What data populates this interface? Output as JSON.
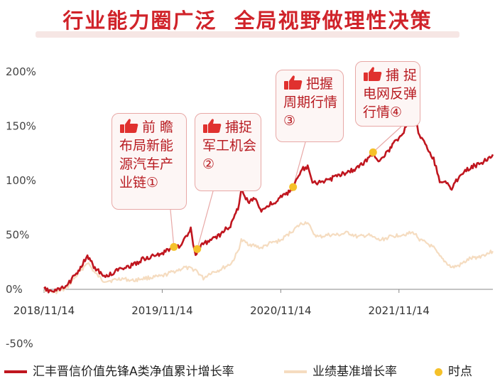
{
  "headline": "行业能力圈广泛  全局视野做理性决策",
  "colors": {
    "fund": "#c0161f",
    "benchmark": "#f5dcc0",
    "point": "#f5c12a",
    "headline": "#d0232a"
  },
  "chart_data": {
    "type": "line",
    "x_axis": {
      "ticks": [
        "2018/11/14",
        "2019/11/14",
        "2020/11/14",
        "2021/11/14"
      ],
      "range": [
        "2018/11/14",
        "2022/08/31"
      ]
    },
    "y_axis": {
      "ticks": [
        "200%",
        "150%",
        "100%",
        "50%",
        "0%",
        "-50%"
      ],
      "range": [
        -50,
        200
      ],
      "unit": "%"
    },
    "series": [
      {
        "name": "汇丰晋信价值先锋A类净值累计增长率",
        "color": "#c0161f",
        "points": [
          [
            "2018/11/14",
            0
          ],
          [
            "2018/12/15",
            -2
          ],
          [
            "2019/01/20",
            2
          ],
          [
            "2019/02/15",
            12
          ],
          [
            "2019/03/10",
            22
          ],
          [
            "2019/03/28",
            30
          ],
          [
            "2019/04/20",
            20
          ],
          [
            "2019/05/15",
            12
          ],
          [
            "2019/06/10",
            14
          ],
          [
            "2019/07/10",
            20
          ],
          [
            "2019/08/15",
            22
          ],
          [
            "2019/09/15",
            28
          ],
          [
            "2019/10/15",
            30
          ],
          [
            "2019/11/14",
            33
          ],
          [
            "2019/12/15",
            38
          ],
          [
            "2020/01/05",
            40
          ],
          [
            "2020/01/20",
            45
          ],
          [
            "2020/02/10",
            55
          ],
          [
            "2020/02/25",
            30
          ],
          [
            "2020/03/05",
            37
          ],
          [
            "2020/03/20",
            42
          ],
          [
            "2020/04/10",
            45
          ],
          [
            "2020/05/10",
            50
          ],
          [
            "2020/06/15",
            60
          ],
          [
            "2020/07/05",
            75
          ],
          [
            "2020/07/15",
            92
          ],
          [
            "2020/08/05",
            80
          ],
          [
            "2020/08/25",
            85
          ],
          [
            "2020/09/15",
            72
          ],
          [
            "2020/10/10",
            78
          ],
          [
            "2020/11/01",
            80
          ],
          [
            "2020/11/14",
            85
          ],
          [
            "2020/12/05",
            88
          ],
          [
            "2020/12/25",
            95
          ],
          [
            "2021/01/15",
            110
          ],
          [
            "2021/02/05",
            112
          ],
          [
            "2021/02/20",
            100
          ],
          [
            "2021/03/10",
            98
          ],
          [
            "2021/04/10",
            100
          ],
          [
            "2021/05/10",
            105
          ],
          [
            "2021/06/10",
            108
          ],
          [
            "2021/07/10",
            112
          ],
          [
            "2021/08/10",
            120
          ],
          [
            "2021/08/26",
            125
          ],
          [
            "2021/09/15",
            118
          ],
          [
            "2021/10/15",
            128
          ],
          [
            "2021/11/14",
            140
          ],
          [
            "2021/12/10",
            150
          ],
          [
            "2021/12/30",
            157
          ],
          [
            "2022/01/20",
            140
          ],
          [
            "2022/02/10",
            130
          ],
          [
            "2022/03/01",
            120
          ],
          [
            "2022/03/20",
            100
          ],
          [
            "2022/04/10",
            98
          ],
          [
            "2022/04/26",
            92
          ],
          [
            "2022/05/20",
            105
          ],
          [
            "2022/06/20",
            112
          ],
          [
            "2022/07/20",
            115
          ],
          [
            "2022/08/31",
            124
          ]
        ]
      },
      {
        "name": "业绩基准增长率",
        "color": "#f5dcc0",
        "points": [
          [
            "2018/11/14",
            0
          ],
          [
            "2018/12/15",
            -3
          ],
          [
            "2019/01/20",
            0
          ],
          [
            "2019/02/15",
            10
          ],
          [
            "2019/03/10",
            18
          ],
          [
            "2019/03/28",
            25
          ],
          [
            "2019/04/20",
            15
          ],
          [
            "2019/05/15",
            8
          ],
          [
            "2019/06/10",
            8
          ],
          [
            "2019/07/10",
            10
          ],
          [
            "2019/08/15",
            8
          ],
          [
            "2019/09/15",
            10
          ],
          [
            "2019/10/15",
            11
          ],
          [
            "2019/11/14",
            12
          ],
          [
            "2019/12/15",
            16
          ],
          [
            "2020/01/05",
            18
          ],
          [
            "2020/01/20",
            20
          ],
          [
            "2020/02/25",
            18
          ],
          [
            "2020/03/20",
            10
          ],
          [
            "2020/04/10",
            15
          ],
          [
            "2020/05/10",
            18
          ],
          [
            "2020/06/15",
            24
          ],
          [
            "2020/07/05",
            35
          ],
          [
            "2020/07/15",
            45
          ],
          [
            "2020/08/05",
            42
          ],
          [
            "2020/08/25",
            40
          ],
          [
            "2020/09/15",
            38
          ],
          [
            "2020/10/10",
            42
          ],
          [
            "2020/11/14",
            45
          ],
          [
            "2020/12/25",
            55
          ],
          [
            "2021/01/15",
            60
          ],
          [
            "2021/02/05",
            62
          ],
          [
            "2021/02/20",
            52
          ],
          [
            "2021/03/10",
            48
          ],
          [
            "2021/04/10",
            50
          ],
          [
            "2021/05/10",
            50
          ],
          [
            "2021/06/10",
            52
          ],
          [
            "2021/07/10",
            48
          ],
          [
            "2021/08/10",
            50
          ],
          [
            "2021/09/15",
            45
          ],
          [
            "2021/10/15",
            48
          ],
          [
            "2021/11/14",
            50
          ],
          [
            "2021/12/30",
            52
          ],
          [
            "2022/01/20",
            45
          ],
          [
            "2022/02/10",
            42
          ],
          [
            "2022/03/01",
            38
          ],
          [
            "2022/03/20",
            30
          ],
          [
            "2022/04/26",
            20
          ],
          [
            "2022/05/20",
            22
          ],
          [
            "2022/06/20",
            28
          ],
          [
            "2022/07/20",
            30
          ],
          [
            "2022/08/31",
            35
          ]
        ]
      }
    ],
    "markers": {
      "name": "时点",
      "color": "#f5c12a",
      "points": [
        [
          "2019/12/20",
          39
        ],
        [
          "2020/03/01",
          37
        ],
        [
          "2020/12/22",
          94
        ],
        [
          "2021/08/26",
          126
        ]
      ]
    },
    "grid": false,
    "legend_position": "bottom"
  },
  "annotations": [
    {
      "lines": [
        "前 瞻",
        "布局新能",
        "源汽车产",
        "业链①"
      ]
    },
    {
      "lines": [
        "捕捉",
        "军工机会",
        "②"
      ]
    },
    {
      "lines": [
        "把握",
        "周期行情",
        "③"
      ]
    },
    {
      "lines": [
        "捕 捉",
        "电网反弹",
        "行情④"
      ]
    }
  ]
}
